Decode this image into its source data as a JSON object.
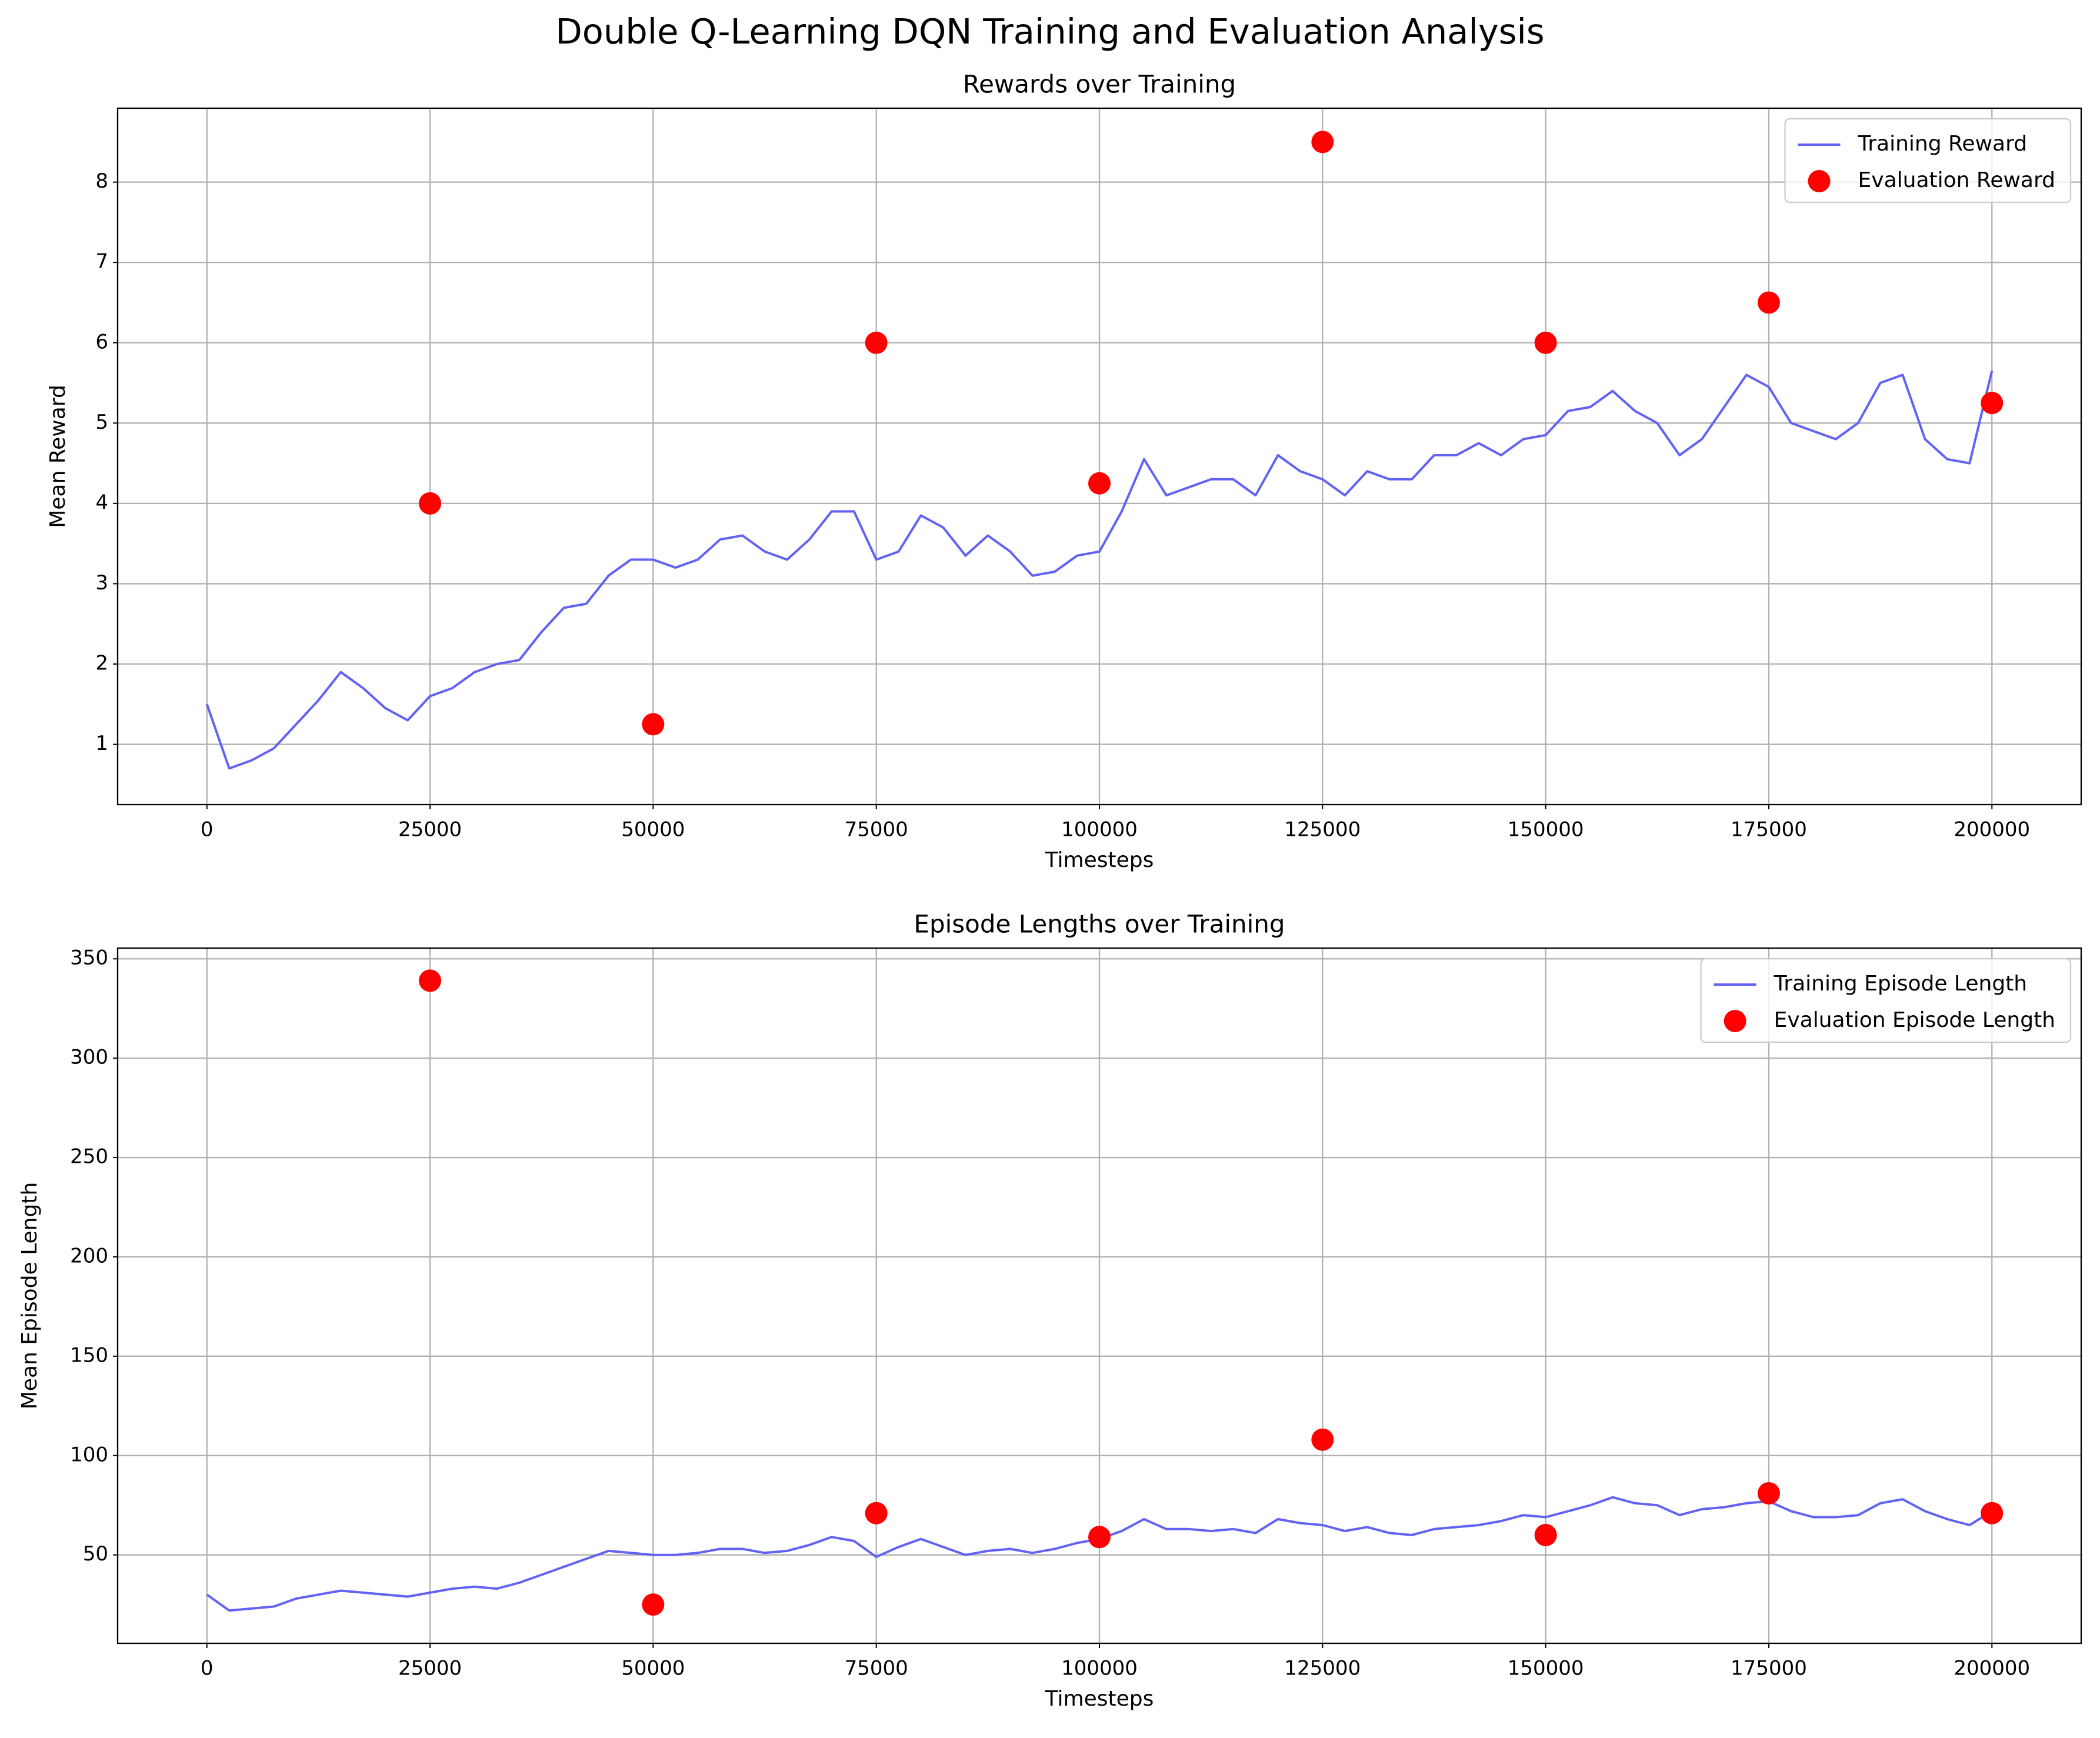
{
  "title": "Double Q-Learning DQN Training and Evaluation Analysis",
  "chart_data": [
    {
      "type": "line",
      "title": "Rewards over Training",
      "xlabel": "Timesteps",
      "ylabel": "Mean Reward",
      "xlim": [
        -10000,
        210000
      ],
      "xticks": [
        0,
        25000,
        50000,
        75000,
        100000,
        125000,
        150000,
        175000,
        200000
      ],
      "ylim": [
        0.25,
        8.92
      ],
      "yticks": [
        1,
        2,
        3,
        4,
        5,
        6,
        7,
        8
      ],
      "grid": true,
      "legend": "upper right",
      "series": [
        {
          "name": "Training Reward",
          "type": "line",
          "color": "#6262f5",
          "x": [
            0,
            2500,
            5000,
            7500,
            10000,
            12500,
            15000,
            17500,
            20000,
            22500,
            25000,
            27500,
            30000,
            32500,
            35000,
            37500,
            40000,
            42500,
            45000,
            47500,
            50000,
            52500,
            55000,
            57500,
            60000,
            62500,
            65000,
            67500,
            70000,
            72500,
            75000,
            77500,
            80000,
            82500,
            85000,
            87500,
            90000,
            92500,
            95000,
            97500,
            100000,
            102500,
            105000,
            107500,
            110000,
            112500,
            115000,
            117500,
            120000,
            122500,
            125000,
            127500,
            130000,
            132500,
            135000,
            137500,
            140000,
            142500,
            145000,
            147500,
            150000,
            152500,
            155000,
            157500,
            160000,
            162500,
            165000,
            167500,
            170000,
            172500,
            175000,
            177500,
            180000,
            182500,
            185000,
            187500,
            190000,
            192500,
            195000,
            197500,
            200000
          ],
          "values": [
            1.5,
            0.7,
            0.8,
            0.95,
            1.25,
            1.55,
            1.9,
            1.7,
            1.45,
            1.3,
            1.6,
            1.7,
            1.9,
            2.0,
            2.05,
            2.4,
            2.7,
            2.75,
            3.1,
            3.3,
            3.3,
            3.2,
            3.3,
            3.55,
            3.6,
            3.4,
            3.3,
            3.55,
            3.9,
            3.9,
            3.3,
            3.4,
            3.85,
            3.7,
            3.35,
            3.6,
            3.4,
            3.1,
            3.15,
            3.35,
            3.4,
            3.9,
            4.55,
            4.1,
            4.2,
            4.3,
            4.3,
            4.1,
            4.6,
            4.4,
            4.3,
            4.1,
            4.4,
            4.3,
            4.3,
            4.6,
            4.6,
            4.75,
            4.6,
            4.8,
            4.85,
            5.15,
            5.2,
            5.4,
            5.15,
            5.0,
            4.6,
            4.8,
            5.2,
            5.6,
            5.45,
            5.0,
            4.9,
            4.8,
            5.0,
            5.5,
            5.6,
            4.8,
            4.55,
            4.5,
            5.65
          ]
        },
        {
          "name": "Evaluation Reward",
          "type": "scatter",
          "color": "#ff0000",
          "x": [
            25000,
            50000,
            75000,
            100000,
            125000,
            150000,
            175000,
            200000
          ],
          "values": [
            4,
            1.25,
            6,
            4.25,
            8.5,
            6,
            6.5,
            5.25
          ]
        }
      ]
    },
    {
      "type": "line",
      "title": "Episode Lengths over Training",
      "xlabel": "Timesteps",
      "ylabel": "Mean Episode Length",
      "xlim": [
        -10000,
        210000
      ],
      "xticks": [
        0,
        25000,
        50000,
        75000,
        100000,
        125000,
        150000,
        175000,
        200000
      ],
      "ylim": [
        5.5,
        355.4
      ],
      "yticks": [
        50,
        100,
        150,
        200,
        250,
        300,
        350
      ],
      "grid": true,
      "legend": "upper right",
      "series": [
        {
          "name": "Training Episode Length",
          "type": "line",
          "color": "#6262f5",
          "x": [
            0,
            2500,
            5000,
            7500,
            10000,
            12500,
            15000,
            17500,
            20000,
            22500,
            25000,
            27500,
            30000,
            32500,
            35000,
            37500,
            40000,
            42500,
            45000,
            47500,
            50000,
            52500,
            55000,
            57500,
            60000,
            62500,
            65000,
            67500,
            70000,
            72500,
            75000,
            77500,
            80000,
            82500,
            85000,
            87500,
            90000,
            92500,
            95000,
            97500,
            100000,
            102500,
            105000,
            107500,
            110000,
            112500,
            115000,
            117500,
            120000,
            122500,
            125000,
            127500,
            130000,
            132500,
            135000,
            137500,
            140000,
            142500,
            145000,
            147500,
            150000,
            152500,
            155000,
            157500,
            160000,
            162500,
            165000,
            167500,
            170000,
            172500,
            175000,
            177500,
            180000,
            182500,
            185000,
            187500,
            190000,
            192500,
            195000,
            197500,
            200000
          ],
          "values": [
            30,
            22,
            23,
            24,
            28,
            30,
            32,
            31,
            30,
            29,
            31,
            33,
            34,
            33,
            36,
            40,
            44,
            48,
            52,
            51,
            50,
            50,
            51,
            53,
            53,
            51,
            52,
            55,
            59,
            57,
            49,
            54,
            58,
            54,
            50,
            52,
            53,
            51,
            53,
            56,
            58,
            62,
            68,
            63,
            63,
            62,
            63,
            61,
            68,
            66,
            65,
            62,
            64,
            61,
            60,
            63,
            64,
            65,
            67,
            70,
            69,
            72,
            75,
            79,
            76,
            75,
            70,
            73,
            74,
            76,
            77,
            72,
            69,
            69,
            70,
            76,
            78,
            72,
            68,
            65,
            72
          ]
        },
        {
          "name": "Evaluation Episode Length",
          "type": "scatter",
          "color": "#ff0000",
          "x": [
            25000,
            50000,
            75000,
            100000,
            125000,
            150000,
            175000,
            200000
          ],
          "values": [
            339,
            25,
            71,
            59,
            108,
            60,
            81,
            71
          ]
        }
      ]
    }
  ]
}
